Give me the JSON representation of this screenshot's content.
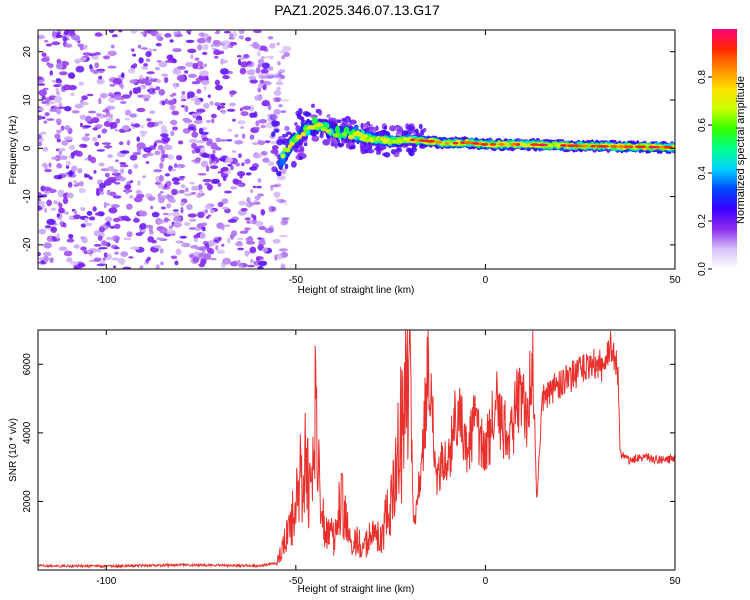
{
  "title": "PAZ1.2025.346.07.13.G17",
  "chart_data": [
    {
      "type": "heatmap",
      "name": "spectrogram",
      "xlabel": "Height of straight line (km)",
      "ylabel": "Frequency (Hz)",
      "xlim": [
        -118,
        50
      ],
      "ylim": [
        -25,
        24.5
      ],
      "xticks": [
        -100,
        -50,
        0,
        50
      ],
      "yticks": [
        -20,
        -10,
        0,
        10,
        20
      ],
      "noise_region_x": [
        -118,
        -55
      ],
      "signal_track": [
        {
          "x": -55,
          "y": -5
        },
        {
          "x": -53,
          "y": -1
        },
        {
          "x": -50,
          "y": 2
        },
        {
          "x": -47,
          "y": 4
        },
        {
          "x": -45,
          "y": 5
        },
        {
          "x": -40,
          "y": 3.5
        },
        {
          "x": -35,
          "y": 3
        },
        {
          "x": -30,
          "y": 2
        },
        {
          "x": -25,
          "y": 1.5
        },
        {
          "x": -20,
          "y": 1.8
        },
        {
          "x": -15,
          "y": 1.5
        },
        {
          "x": -10,
          "y": 1
        },
        {
          "x": -5,
          "y": 1.2
        },
        {
          "x": 0,
          "y": 0.8
        },
        {
          "x": 10,
          "y": 0.8
        },
        {
          "x": 20,
          "y": 0.6
        },
        {
          "x": 30,
          "y": 0.4
        },
        {
          "x": 40,
          "y": 0.3
        },
        {
          "x": 50,
          "y": 0.2
        }
      ],
      "colorbar": {
        "label": "Normalized spectral amplitude",
        "range": [
          0,
          1
        ],
        "ticks": [
          "0.0",
          "0.2",
          "0.4",
          "0.6",
          "0.8"
        ],
        "colors": [
          "#ffffff",
          "#d7c0f7",
          "#8c2cf0",
          "#3a00ff",
          "#0048ff",
          "#00d2ff",
          "#00ff8c",
          "#32ff00",
          "#c8ff00",
          "#ffe000",
          "#ff8a00",
          "#ff2a00",
          "#ff007a"
        ]
      }
    },
    {
      "type": "line",
      "name": "snr",
      "xlabel": "Height of straight line (km)",
      "ylabel": "SNR (10 * v/v)",
      "xlim": [
        -118,
        50
      ],
      "ylim": [
        0,
        7000
      ],
      "xticks": [
        -100,
        -50,
        0,
        50
      ],
      "yticks": [
        2000,
        4000,
        6000
      ],
      "color": "#e8302c",
      "series": [
        {
          "x": -118,
          "y": 120
        },
        {
          "x": -100,
          "y": 110
        },
        {
          "x": -80,
          "y": 150
        },
        {
          "x": -60,
          "y": 120
        },
        {
          "x": -55,
          "y": 200
        },
        {
          "x": -53,
          "y": 800
        },
        {
          "x": -50,
          "y": 1800
        },
        {
          "x": -48,
          "y": 3300
        },
        {
          "x": -46,
          "y": 2000
        },
        {
          "x": -45,
          "y": 4700
        },
        {
          "x": -43,
          "y": 1400
        },
        {
          "x": -40,
          "y": 900
        },
        {
          "x": -38,
          "y": 2000
        },
        {
          "x": -36,
          "y": 1000
        },
        {
          "x": -32,
          "y": 700
        },
        {
          "x": -30,
          "y": 1000
        },
        {
          "x": -28,
          "y": 900
        },
        {
          "x": -26,
          "y": 1500
        },
        {
          "x": -24,
          "y": 2300
        },
        {
          "x": -22,
          "y": 4300
        },
        {
          "x": -20,
          "y": 7000
        },
        {
          "x": -19,
          "y": 1300
        },
        {
          "x": -17,
          "y": 2800
        },
        {
          "x": -15,
          "y": 6000
        },
        {
          "x": -13,
          "y": 2800
        },
        {
          "x": -10,
          "y": 3200
        },
        {
          "x": -7,
          "y": 4800
        },
        {
          "x": -5,
          "y": 3600
        },
        {
          "x": -3,
          "y": 4300
        },
        {
          "x": 0,
          "y": 3700
        },
        {
          "x": 3,
          "y": 4700
        },
        {
          "x": 6,
          "y": 3900
        },
        {
          "x": 9,
          "y": 5000
        },
        {
          "x": 11,
          "y": 4400
        },
        {
          "x": 12.5,
          "y": 6800
        },
        {
          "x": 13.5,
          "y": 2000
        },
        {
          "x": 15,
          "y": 5000
        },
        {
          "x": 18,
          "y": 5300
        },
        {
          "x": 22,
          "y": 5600
        },
        {
          "x": 25,
          "y": 5800
        },
        {
          "x": 28,
          "y": 6100
        },
        {
          "x": 31,
          "y": 5900
        },
        {
          "x": 33,
          "y": 6500
        },
        {
          "x": 35,
          "y": 5800
        },
        {
          "x": 35.5,
          "y": 3400
        },
        {
          "x": 38,
          "y": 3200
        },
        {
          "x": 42,
          "y": 3300
        },
        {
          "x": 46,
          "y": 3200
        },
        {
          "x": 50,
          "y": 3250
        }
      ]
    }
  ]
}
